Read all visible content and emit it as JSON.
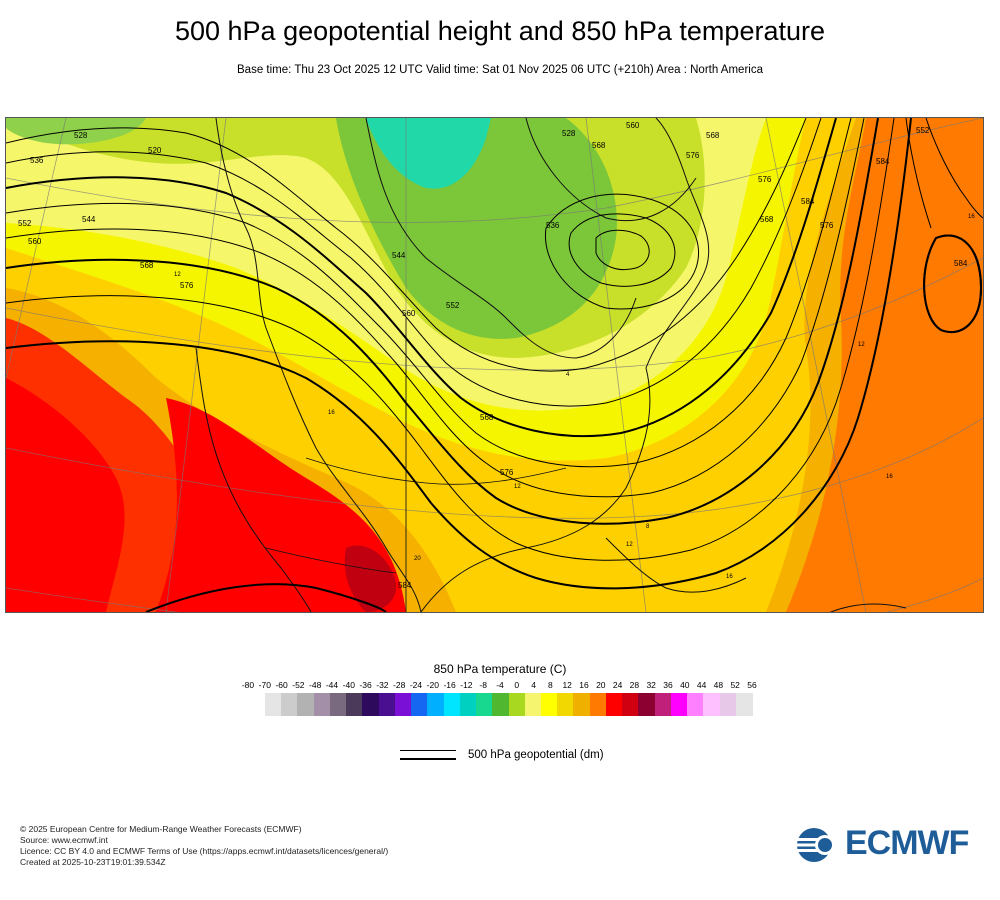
{
  "header": {
    "title": "500 hPa geopotential height and 850 hPa temperature",
    "subtitle": "Base time: Thu 23 Oct 2025 12 UTC Valid time: Sat 01 Nov 2025 06 UTC (+210h) Area : North America"
  },
  "map": {
    "contour_labels": [
      "528",
      "536",
      "520",
      "544",
      "552",
      "560",
      "568",
      "576",
      "584",
      "528",
      "536",
      "544",
      "552",
      "560",
      "568",
      "576",
      "568",
      "576",
      "584",
      "584",
      "576",
      "568",
      "560",
      "552",
      "584",
      "568",
      "576"
    ],
    "temp_labels": [
      "12",
      "12",
      "12",
      "16",
      "16",
      "20",
      "4",
      "12",
      "8",
      "16",
      "16"
    ]
  },
  "colorbar": {
    "title": "850 hPa temperature (C)",
    "ticks": [
      "-80",
      "-70",
      "-60",
      "-52",
      "-48",
      "-44",
      "-40",
      "-36",
      "-32",
      "-28",
      "-24",
      "-20",
      "-16",
      "-12",
      "-8",
      "-4",
      "0",
      "4",
      "8",
      "12",
      "16",
      "20",
      "24",
      "28",
      "32",
      "36",
      "40",
      "44",
      "48",
      "52",
      "56"
    ],
    "colors": [
      "#e5e5e5",
      "#cccccc",
      "#b2b2b2",
      "#a48fa8",
      "#7a6a80",
      "#4b3a5a",
      "#2d0a5c",
      "#4a0f90",
      "#7a10d6",
      "#1566f0",
      "#00b0ff",
      "#00e5ff",
      "#00d0c0",
      "#18d890",
      "#4fb830",
      "#a8d820",
      "#f5f570",
      "#ffff00",
      "#f0d800",
      "#f0b000",
      "#ff7a00",
      "#ff0000",
      "#d00010",
      "#8b0030",
      "#c0207a",
      "#ff00ff",
      "#ff80ff",
      "#ffc0ff",
      "#e8c8e8",
      "#e5e5e5"
    ]
  },
  "legend": {
    "label": "500 hPa geopotential (dm)"
  },
  "footer": {
    "lines": [
      "© 2025 European Centre for Medium-Range Weather Forecasts (ECMWF)",
      "Source: www.ecmwf.int",
      "Licence: CC BY 4.0 and ECMWF Terms of Use (https://apps.ecmwf.int/datasets/licences/general/)",
      "Created at 2025-10-23T19:01:39.534Z"
    ],
    "logo_text": "ECMWF",
    "logo_color": "#1f5d99"
  }
}
